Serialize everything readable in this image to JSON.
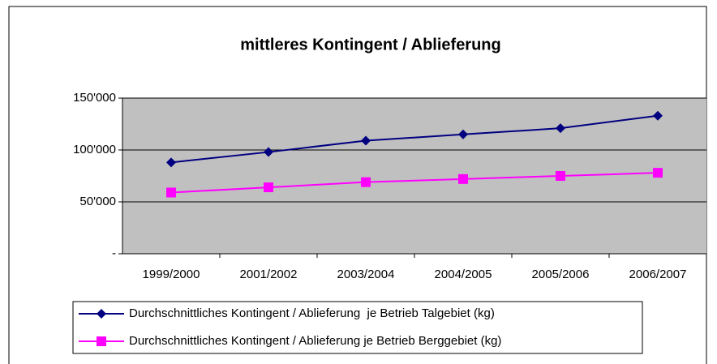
{
  "chart_data": {
    "type": "line",
    "title": "mittleres Kontingent / Ablieferung",
    "categories": [
      "1999/2000",
      "2001/2002",
      "2003/2004",
      "2004/2005",
      "2005/2006",
      "2006/2007"
    ],
    "series": [
      {
        "name": "Durchschnittliches Kontingent / Ablieferung  je Betrieb Talgebiet (kg)",
        "color": "#000080",
        "marker": "diamond",
        "values": [
          88000,
          98000,
          109000,
          115000,
          121000,
          133000
        ]
      },
      {
        "name": "Durchschnittliches Kontingent / Ablieferung je Betrieb Berggebiet (kg)",
        "color": "#ff00ff",
        "marker": "square",
        "values": [
          59000,
          64000,
          69000,
          72000,
          75000,
          78000
        ]
      }
    ],
    "ylim": [
      0,
      150000
    ],
    "yticks": [
      {
        "value": 0,
        "label": "-"
      },
      {
        "value": 50000,
        "label": "50'000"
      },
      {
        "value": 100000,
        "label": "100'000"
      },
      {
        "value": 150000,
        "label": "150'000"
      }
    ],
    "grid": true,
    "legend": "bottom"
  }
}
